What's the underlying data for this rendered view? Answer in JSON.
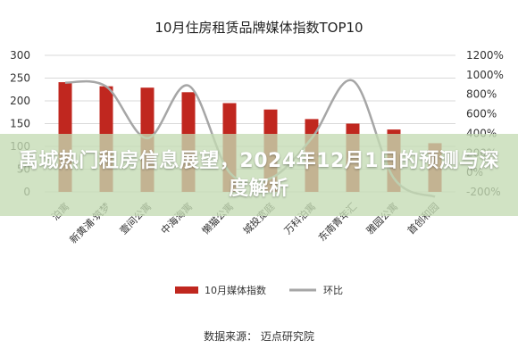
{
  "chart_data": {
    "type": "bar",
    "title": "10月住房租赁品牌媒体指数TOP10",
    "categories": [
      "泊寓",
      "新黄浦·筑梦",
      "壹间公寓",
      "中海海寓",
      "懒猫公寓",
      "城投宽庭",
      "万科泊寓",
      "东南青年汇",
      "雅园公寓",
      "首创和园"
    ],
    "series": [
      {
        "name": "10月媒体指数",
        "type": "bar",
        "axis": "left",
        "color": "#c0271f",
        "values": [
          241,
          232,
          229,
          219,
          195,
          181,
          160,
          150,
          137,
          107
        ]
      },
      {
        "name": "环比",
        "type": "line",
        "axis": "right",
        "color": "#a6a6a6",
        "values": [
          920,
          880,
          350,
          890,
          0,
          -60,
          350,
          940,
          -60,
          -250
        ]
      }
    ],
    "yleft": {
      "ticks": [
        "0",
        "50",
        "100",
        "150",
        "200",
        "250",
        "300"
      ],
      "range": [
        0,
        300
      ]
    },
    "yright": {
      "ticks": [
        "-200%",
        "0%",
        "200%",
        "400%",
        "600%",
        "800%",
        "1000%",
        "1200%"
      ],
      "range": [
        -200,
        1200
      ]
    },
    "legend_position": "bottom"
  },
  "source_note": "数据来源：  迈点研究院",
  "overlay": {
    "headline": "禹城热门租房信息展望，2024年12月1日的预测与深度解析"
  }
}
